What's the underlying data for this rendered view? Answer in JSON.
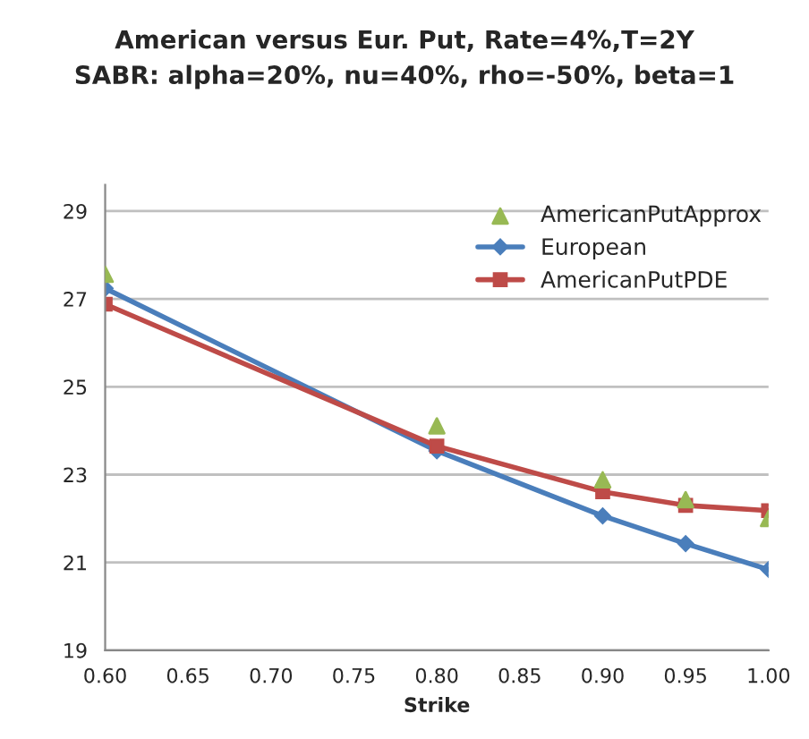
{
  "chart_data": {
    "type": "line",
    "title": "American versus Eur. Put, Rate=4%,T=2Y\nSABR: alpha=20%, nu=40%, rho=-50%, beta=1",
    "xlabel": "Strike",
    "x": [
      0.6,
      0.8,
      0.9,
      0.95,
      1.0
    ],
    "series": [
      {
        "name": "AmericanPutApprox",
        "type": "scatter",
        "marker": "triangle",
        "color": "#98b954",
        "values": [
          27.56,
          24.11,
          22.88,
          22.43,
          22.0
        ]
      },
      {
        "name": "European",
        "marker": "diamond",
        "color": "#4a7ebb",
        "values": [
          27.24,
          23.54,
          22.06,
          21.43,
          20.84
        ]
      },
      {
        "name": "AmericanPutPDE",
        "marker": "square",
        "color": "#be4b48",
        "values": [
          26.88,
          23.65,
          22.61,
          22.3,
          22.18
        ]
      }
    ],
    "xlim": [
      0.6,
      1.0
    ],
    "xticks": [
      {
        "value": 0.6,
        "label": "0.60"
      },
      {
        "value": 0.65,
        "label": "0.65"
      },
      {
        "value": 0.7,
        "label": "0.70"
      },
      {
        "value": 0.75,
        "label": "0.75"
      },
      {
        "value": 0.8,
        "label": "0.80"
      },
      {
        "value": 0.85,
        "label": "0.85"
      },
      {
        "value": 0.9,
        "label": "0.90"
      },
      {
        "value": 0.95,
        "label": "0.95"
      },
      {
        "value": 1.0,
        "label": "1.00"
      }
    ],
    "ylim": [
      19,
      29.6
    ],
    "yticks": [
      19,
      21,
      23,
      25,
      27,
      29
    ],
    "grid": "y",
    "legend": "top right",
    "line_style": "solid"
  }
}
